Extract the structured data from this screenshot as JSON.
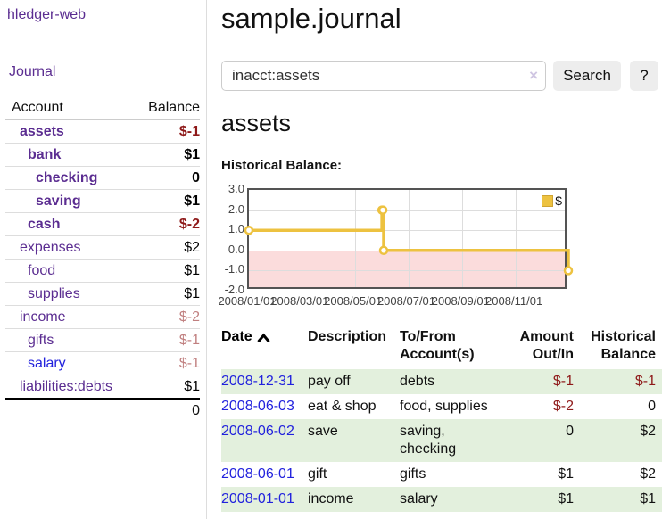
{
  "sidebar": {
    "brand": "hledger-web",
    "nav": {
      "journal": "Journal"
    },
    "accounts_table": {
      "headers": {
        "account": "Account",
        "balance": "Balance"
      },
      "accounts": [
        {
          "name": "assets",
          "depth": 1,
          "bold": true,
          "balance": "$-1",
          "balance_color": "#8e1919",
          "link_color": "#5b2d91"
        },
        {
          "name": "bank",
          "depth": 2,
          "bold": true,
          "balance": "$1",
          "balance_color": "#000000",
          "link_color": "#5b2d91"
        },
        {
          "name": "checking",
          "depth": 3,
          "bold": true,
          "balance": "0",
          "balance_color": "#000000",
          "link_color": "#5b2d91"
        },
        {
          "name": "saving",
          "depth": 3,
          "bold": true,
          "balance": "$1",
          "balance_color": "#000000",
          "link_color": "#5b2d91"
        },
        {
          "name": "cash",
          "depth": 2,
          "bold": true,
          "balance": "$-2",
          "balance_color": "#8e1919",
          "link_color": "#5b2d91"
        },
        {
          "name": "expenses",
          "depth": 1,
          "bold": false,
          "balance": "$2",
          "balance_color": "#000000",
          "link_color": "#5b2d91"
        },
        {
          "name": "food",
          "depth": 2,
          "bold": false,
          "balance": "$1",
          "balance_color": "#000000",
          "link_color": "#5b2d91"
        },
        {
          "name": "supplies",
          "depth": 2,
          "bold": false,
          "balance": "$1",
          "balance_color": "#000000",
          "link_color": "#5b2d91"
        },
        {
          "name": "income",
          "depth": 1,
          "bold": false,
          "balance": "$-2",
          "balance_color": "#c07f7f",
          "link_color": "#5b2d91"
        },
        {
          "name": "gifts",
          "depth": 2,
          "bold": false,
          "balance": "$-1",
          "balance_color": "#c07f7f",
          "link_color": "#5b2d91"
        },
        {
          "name": "salary",
          "depth": 2,
          "bold": false,
          "balance": "$-1",
          "balance_color": "#c07f7f",
          "link_color": "#2222dd"
        },
        {
          "name": "liabilities:debts",
          "depth": 1,
          "bold": false,
          "balance": "$1",
          "balance_color": "#000000",
          "link_color": "#5b2d91"
        }
      ],
      "total": "0"
    }
  },
  "header": {
    "title": "sample.journal"
  },
  "search": {
    "query": "inacct:assets",
    "clear_icon": "×",
    "button_label": "Search",
    "help_label": "?"
  },
  "account_page": {
    "heading": "assets",
    "chart_title": "Historical Balance:"
  },
  "chart_data": {
    "type": "line",
    "steps": true,
    "title": "Historical Balance",
    "series": [
      {
        "name": "$",
        "color": "#edc240",
        "x": [
          "2008-01-01",
          "2008-06-01",
          "2008-06-02",
          "2008-06-03",
          "2008-12-31"
        ],
        "y": [
          1,
          2,
          2,
          0,
          -1
        ]
      }
    ],
    "x_range": [
      "2008-01-01",
      "2008-12-31"
    ],
    "ylim": [
      -2,
      3
    ],
    "yticks": [
      {
        "value": 3,
        "label": "3.0"
      },
      {
        "value": 2,
        "label": "2.0"
      },
      {
        "value": 1,
        "label": "1.0"
      },
      {
        "value": 0,
        "label": "0.0"
      },
      {
        "value": -1,
        "label": "-1.0"
      },
      {
        "value": -2,
        "label": "-2.0"
      }
    ],
    "xticks": [
      {
        "value": "2008-01-01",
        "label": "2008/01/01"
      },
      {
        "value": "2008-03-01",
        "label": "2008/03/01"
      },
      {
        "value": "2008-05-01",
        "label": "2008/05/01"
      },
      {
        "value": "2008-07-01",
        "label": "2008/07/01"
      },
      {
        "value": "2008-09-01",
        "label": "2008/09/01"
      },
      {
        "value": "2008-11-01",
        "label": "2008/11/01"
      }
    ],
    "legend": "$",
    "legend_position": "top-right",
    "grid": true,
    "negative_region_color": "#fbdcdc",
    "zero_line_color": "#8b0000"
  },
  "register": {
    "headers": [
      "Date",
      "Description",
      "To/From Account(s)",
      "Amount Out/In",
      "Historical Balance"
    ],
    "sort_column": "Date",
    "sort_direction": "ascending",
    "rows": [
      {
        "date": "2008-12-31",
        "description": "pay off",
        "accounts": "debts",
        "amount": "$-1",
        "amount_negative": true,
        "balance": "$-1",
        "balance_negative": true
      },
      {
        "date": "2008-06-03",
        "description": "eat & shop",
        "accounts": "food, supplies",
        "amount": "$-2",
        "amount_negative": true,
        "balance": "0",
        "balance_negative": false
      },
      {
        "date": "2008-06-02",
        "description": "save",
        "accounts": "saving, checking",
        "amount": "0",
        "amount_negative": false,
        "balance": "$2",
        "balance_negative": false
      },
      {
        "date": "2008-06-01",
        "description": "gift",
        "accounts": "gifts",
        "amount": "$1",
        "amount_negative": false,
        "balance": "$2",
        "balance_negative": false
      },
      {
        "date": "2008-01-01",
        "description": "income",
        "accounts": "salary",
        "amount": "$1",
        "amount_negative": false,
        "balance": "$1",
        "balance_negative": false
      }
    ]
  },
  "colors": {
    "link_purple": "#5b2d91",
    "link_blue": "#2222dd",
    "negative_strong": "#8e1919",
    "negative_muted": "#c07f7f",
    "row_stripe_green": "#e3f0dd",
    "chart_series_gold": "#edc240",
    "chart_negative_area": "#fbdcdc",
    "chart_zero_line": "#8b0000"
  }
}
